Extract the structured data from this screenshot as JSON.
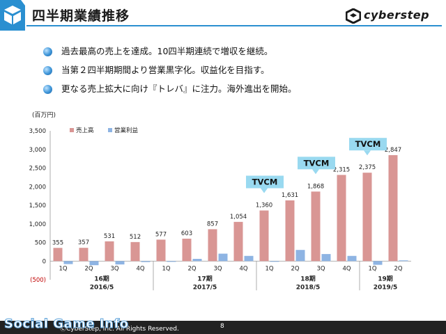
{
  "title": "四半期業績推移",
  "brand": "cyberstep",
  "bullets": [
    "過去最高の売上を達成。10四半期連続で増収を継続。",
    "当第２四半期期間より営業黒字化。収益化を目指す。",
    "更なる売上拡大に向け『トレバ』に注力。海外進出を開始。"
  ],
  "unit_label": "(百万円)",
  "footer": {
    "copyright": "ⒸCyberStep, Inc. All Rights Reserved.",
    "page": "8",
    "watermark": "Social Game Info"
  },
  "colors": {
    "accent": "#2a8fd0",
    "revenue": "#d99694",
    "profit": "#8eb4e3",
    "callout": "#99d9f0"
  },
  "chart_data": {
    "type": "bar",
    "categories": [
      "1Q",
      "2Q",
      "3Q",
      "4Q",
      "1Q",
      "2Q",
      "3Q",
      "4Q",
      "1Q",
      "2Q",
      "3Q",
      "4Q",
      "1Q",
      "2Q"
    ],
    "fiscal_groups": [
      {
        "label": "16期",
        "sub": "2016/5",
        "start": 0,
        "end": 3
      },
      {
        "label": "17期",
        "sub": "2017/5",
        "start": 4,
        "end": 7
      },
      {
        "label": "18期",
        "sub": "2018/5",
        "start": 8,
        "end": 11
      },
      {
        "label": "19期",
        "sub": "2019/5",
        "start": 12,
        "end": 13
      }
    ],
    "series": [
      {
        "name": "売上高",
        "values": [
          355,
          357,
          531,
          512,
          577,
          603,
          857,
          1054,
          1360,
          1631,
          1868,
          2315,
          2375,
          2847
        ]
      },
      {
        "name": "営業利益",
        "values": [
          -80,
          -110,
          -90,
          -25,
          -20,
          60,
          200,
          140,
          -15,
          300,
          190,
          140,
          -100,
          20
        ]
      }
    ],
    "revenue_labels": [
      "355",
      "357",
      "531",
      "512",
      "577",
      "603",
      "857",
      "1,054",
      "1,360",
      "1,631",
      "1,868",
      "2,315",
      "2,375",
      "2,847"
    ],
    "y_ticks": [
      "(500)",
      "0",
      "500",
      "1,000",
      "1,500",
      "2,000",
      "2,500",
      "3,000",
      "3,500"
    ],
    "ylim": [
      -500,
      3500
    ],
    "legend_position": "top-left",
    "annotations": [
      {
        "text": "TVCM",
        "category_index": 8
      },
      {
        "text": "TVCM",
        "category_index": 10
      },
      {
        "text": "TVCM",
        "category_index": 12
      }
    ]
  }
}
